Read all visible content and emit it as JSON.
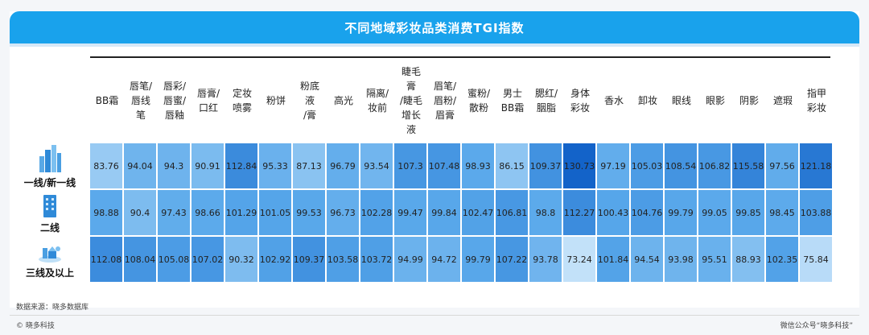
{
  "title": "不同地域彩妆品类消费TGI指数",
  "source": "数据来源：晓多数据库",
  "brand": "© 晓多科技",
  "credit": "微信公众号“晓多科技”",
  "chart_data": {
    "type": "heatmap",
    "title": "不同地域彩妆品类消费TGI指数",
    "categories": [
      "BB霜",
      "唇笔/\n唇线\n笔",
      "唇彩/\n唇蜜/\n唇釉",
      "唇膏/\n口红",
      "定妆\n喷雾",
      "粉饼",
      "粉底\n液\n/膏",
      "高光",
      "隔离/\n妆前",
      "睫毛\n膏\n/睫毛\n增长\n液",
      "眉笔/\n眉粉/\n眉膏",
      "蜜粉/\n散粉",
      "男士\nBB霜",
      "腮红/\n胭脂",
      "身体\n彩妆",
      "香水",
      "卸妆",
      "眼线",
      "眼影",
      "阴影",
      "遮瑕",
      "指甲\n彩妆"
    ],
    "series": [
      {
        "name": "一线/新一线",
        "icon": "city-skyline-icon",
        "values": [
          83.76,
          94.04,
          94.3,
          90.91,
          112.84,
          95.33,
          87.13,
          96.79,
          93.54,
          107.3,
          107.48,
          98.93,
          86.15,
          109.37,
          130.73,
          97.19,
          105.03,
          108.54,
          106.82,
          115.58,
          97.56,
          121.18
        ]
      },
      {
        "name": "二线",
        "icon": "office-building-icon",
        "values": [
          98.88,
          90.4,
          97.43,
          98.66,
          101.29,
          101.05,
          99.53,
          96.73,
          102.28,
          99.47,
          99.84,
          102.47,
          106.81,
          98.8,
          112.27,
          100.43,
          104.76,
          99.79,
          99.05,
          99.85,
          98.45,
          103.88
        ]
      },
      {
        "name": "三线及以上",
        "icon": "small-town-icon",
        "values": [
          112.08,
          108.04,
          105.08,
          107.02,
          90.32,
          102.92,
          109.37,
          103.58,
          103.72,
          94.99,
          94.72,
          99.79,
          107.22,
          93.78,
          73.24,
          101.84,
          94.54,
          93.98,
          95.51,
          88.93,
          102.35,
          75.84
        ]
      }
    ],
    "color_scale": {
      "low": "#cfe8fb",
      "mid": "#57a7ea",
      "high": "#1060c8"
    }
  }
}
